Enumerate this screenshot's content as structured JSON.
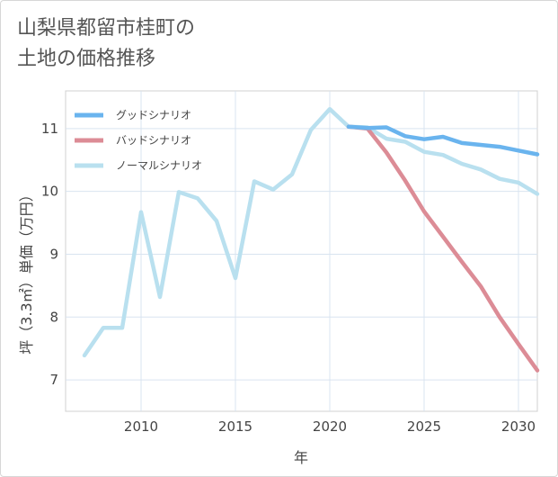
{
  "title": "山梨県都留市桂町の\n土地の価格推移",
  "chart_data": {
    "type": "line",
    "title": "山梨県都留市桂町の土地の価格推移",
    "xlabel": "年",
    "ylabel": "坪（3.3㎡）単価（万円）",
    "xlim": [
      2006,
      2031
    ],
    "ylim": [
      6.5,
      11.6
    ],
    "x_ticks": [
      2010,
      2015,
      2020,
      2025,
      2030
    ],
    "y_ticks": [
      7,
      8,
      9,
      10,
      11
    ],
    "grid": true,
    "legend_position": "top-left",
    "series": [
      {
        "name": "グッドシナリオ",
        "color": "#6ab4ee",
        "x": [
          2021,
          2022,
          2023,
          2024,
          2025,
          2026,
          2027,
          2028,
          2029,
          2030,
          2031
        ],
        "values": [
          11.03,
          11.01,
          11.02,
          10.88,
          10.83,
          10.87,
          10.77,
          10.74,
          10.71,
          10.65,
          10.59
        ]
      },
      {
        "name": "バッドシナリオ",
        "color": "#dc8c96",
        "x": [
          2021,
          2022,
          2023,
          2024,
          2025,
          2026,
          2027,
          2028,
          2029,
          2030,
          2031
        ],
        "values": [
          11.03,
          11.0,
          10.62,
          10.17,
          9.68,
          9.28,
          8.88,
          8.49,
          8.0,
          7.57,
          7.15
        ]
      },
      {
        "name": "ノーマルシナリオ",
        "color": "#b9e0ef",
        "x": [
          2007,
          2008,
          2009,
          2010,
          2011,
          2012,
          2013,
          2014,
          2015,
          2016,
          2017,
          2018,
          2019,
          2020,
          2021,
          2022,
          2023,
          2024,
          2025,
          2026,
          2027,
          2028,
          2029,
          2030,
          2031
        ],
        "values": [
          7.39,
          7.83,
          7.83,
          9.67,
          8.32,
          9.99,
          9.89,
          9.53,
          8.62,
          10.16,
          10.03,
          10.27,
          10.98,
          11.31,
          11.03,
          11.02,
          10.84,
          10.79,
          10.63,
          10.58,
          10.44,
          10.35,
          10.2,
          10.14,
          9.96
        ]
      }
    ]
  }
}
